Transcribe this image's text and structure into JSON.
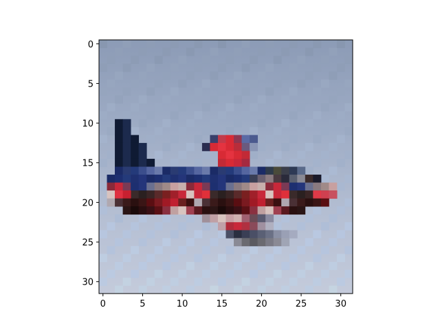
{
  "figure": {
    "image_description": "32x32 pixelated image of a red, navy and white airplane in flight against a pale blue-grey sky",
    "colors": {
      "sky_top": "#8b9bb7",
      "sky_bottom": "#c3cbdc",
      "fuselage_navy": "#1a2a5e",
      "tail_dark": "#0f1a33",
      "accent_red": "#d82a35",
      "dark_red": "#5a0e12",
      "belly_white": "#d8c3bf"
    }
  },
  "axes": {
    "x_ticks": [
      "0",
      "5",
      "10",
      "15",
      "20",
      "25",
      "30"
    ],
    "y_ticks": [
      "0",
      "5",
      "10",
      "15",
      "20",
      "25",
      "30"
    ],
    "xlim": [
      -0.5,
      31.5
    ],
    "ylim": [
      31.5,
      -0.5
    ]
  }
}
